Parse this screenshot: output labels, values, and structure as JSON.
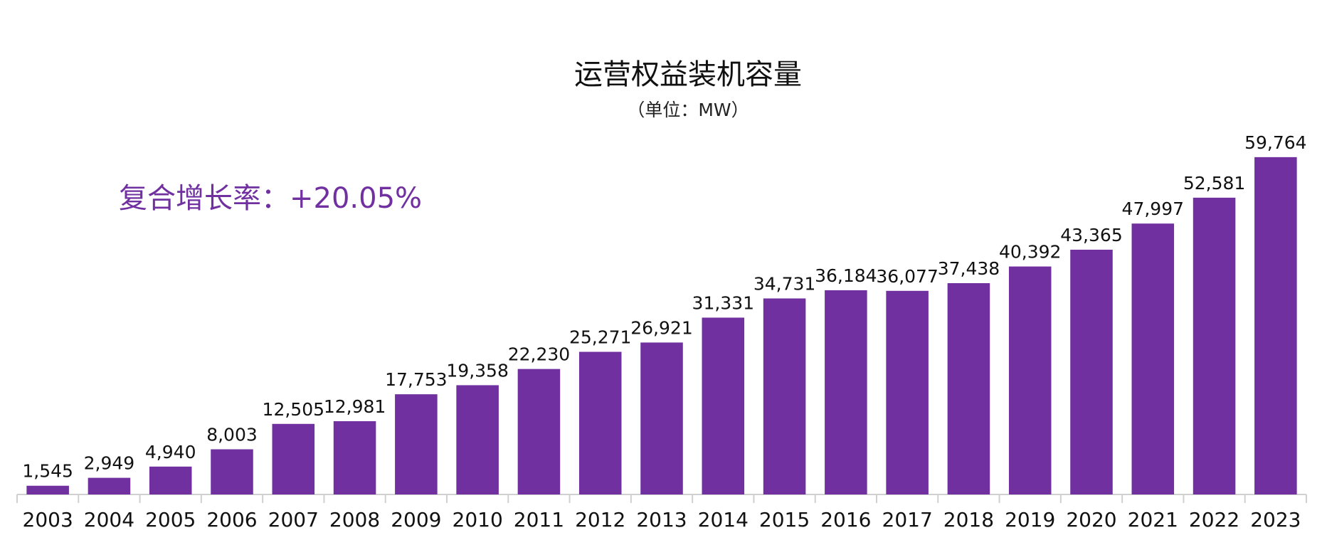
{
  "chart_data": {
    "type": "bar",
    "title": "运营权益装机容量",
    "subtitle": "（单位：MW）",
    "annotation": "复合增长率：+20.05%",
    "xlabel": "",
    "ylabel": "",
    "categories": [
      "2003",
      "2004",
      "2005",
      "2006",
      "2007",
      "2008",
      "2009",
      "2010",
      "2011",
      "2012",
      "2013",
      "2014",
      "2015",
      "2016",
      "2017",
      "2018",
      "2019",
      "2020",
      "2021",
      "2022",
      "2023"
    ],
    "values": [
      1545,
      2949,
      4940,
      8003,
      12505,
      12981,
      17753,
      19358,
      22230,
      25271,
      26921,
      31331,
      34731,
      36184,
      36077,
      37438,
      40392,
      43365,
      47997,
      52581,
      59764
    ],
    "value_labels": [
      "1,545",
      "2,949",
      "4,940",
      "8,003",
      "12,505",
      "12,981",
      "17,753",
      "19,358",
      "22,230",
      "25,271",
      "26,921",
      "31,331",
      "34,731",
      "36,184",
      "36,077",
      "37,438",
      "40,392",
      "43,365",
      "47,997",
      "52,581",
      "59,764"
    ],
    "ylim": [
      0,
      60000
    ],
    "grid": false,
    "legend": "none",
    "colors": {
      "bar": "#7030A0",
      "annotation": "#7030A0",
      "axis": "#D0D0D0"
    }
  }
}
